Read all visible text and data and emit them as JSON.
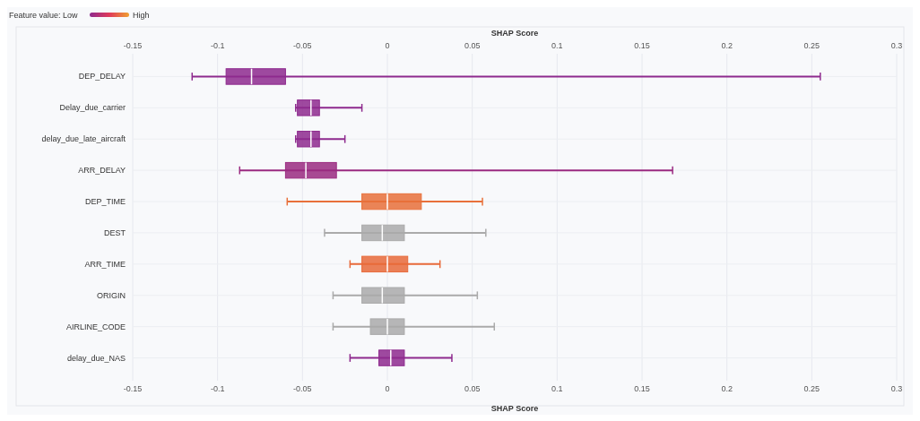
{
  "chart_data": {
    "type": "box",
    "orientation": "horizontal",
    "xlabel": "SHAP Score",
    "x2label": "SHAP Score",
    "annotations": [
      "Feature value: Low",
      "High"
    ],
    "categories": [
      "DEP_DELAY",
      "Delay_due_carrier",
      "delay_due_late_aircraft",
      "ARR_DELAY",
      "DEP_TIME",
      "DEST",
      "ARR_TIME",
      "ORIGIN",
      "AIRLINE_CODE",
      "delay_due_NAS"
    ],
    "boxes": [
      {
        "low": -0.115,
        "q1": -0.095,
        "median": -0.08,
        "q3": -0.06,
        "high": 0.255
      },
      {
        "low": -0.054,
        "q1": -0.053,
        "median": -0.045,
        "q3": -0.04,
        "high": -0.015
      },
      {
        "low": -0.054,
        "q1": -0.053,
        "median": -0.045,
        "q3": -0.04,
        "high": -0.025
      },
      {
        "low": -0.087,
        "q1": -0.06,
        "median": -0.048,
        "q3": -0.03,
        "high": 0.168
      },
      {
        "low": -0.059,
        "q1": -0.015,
        "median": 0,
        "q3": 0.02,
        "high": 0.056
      },
      {
        "low": -0.037,
        "q1": -0.015,
        "median": -0.003,
        "q3": 0.01,
        "high": 0.058
      },
      {
        "low": -0.022,
        "q1": -0.015,
        "median": 0,
        "q3": 0.012,
        "high": 0.031
      },
      {
        "low": -0.032,
        "q1": -0.015,
        "median": -0.003,
        "q3": 0.01,
        "high": 0.053
      },
      {
        "low": -0.032,
        "q1": -0.01,
        "median": 0,
        "q3": 0.01,
        "high": 0.063
      },
      {
        "low": -0.022,
        "q1": -0.005,
        "median": 0.002,
        "q3": 0.01,
        "high": 0.038
      }
    ],
    "colors": [
      "#8e2a8e",
      "#8e2a8e",
      "#8e2a8e",
      "#9a2a80",
      "#e8703a",
      "#aaaaaa",
      "#e86a3a",
      "#aaaaaa",
      "#aaaaaa",
      "#8e2a8e"
    ],
    "xlim": [
      -0.15,
      0.3
    ],
    "xticks": [
      -0.15,
      -0.1,
      -0.05,
      0,
      0.05,
      0.1,
      0.15,
      0.2,
      0.25,
      0.3
    ],
    "x2lim": [
      -0.15,
      0.3
    ],
    "x2ticks": [
      -0.15,
      -0.1,
      -0.05,
      0,
      0.05,
      0.1,
      0.15,
      0.2,
      0.25,
      0.3
    ],
    "grid": true
  }
}
